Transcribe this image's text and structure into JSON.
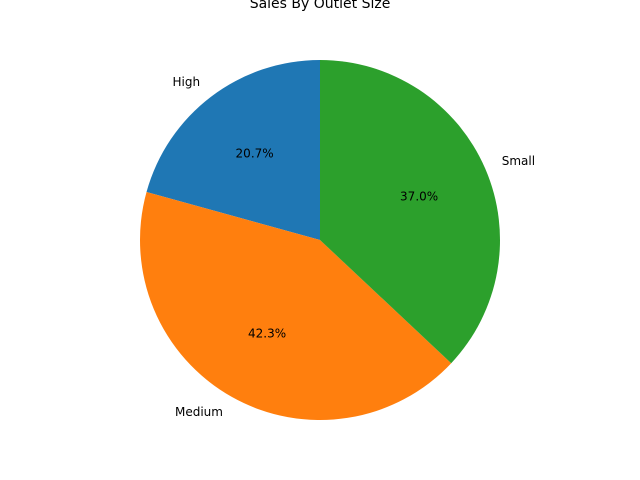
{
  "chart_data": {
    "type": "pie",
    "title": "Sales By Outlet Size",
    "categories": [
      "High",
      "Medium",
      "Small"
    ],
    "values": [
      20.7,
      42.3,
      37.0
    ],
    "percent_labels": [
      "20.7%",
      "42.3%",
      "37.0%"
    ],
    "colors": [
      "#1f77b4",
      "#ff7f0e",
      "#2ca02c"
    ],
    "start_angle_deg": 90,
    "direction": "counterclockwise",
    "legend": "none"
  }
}
